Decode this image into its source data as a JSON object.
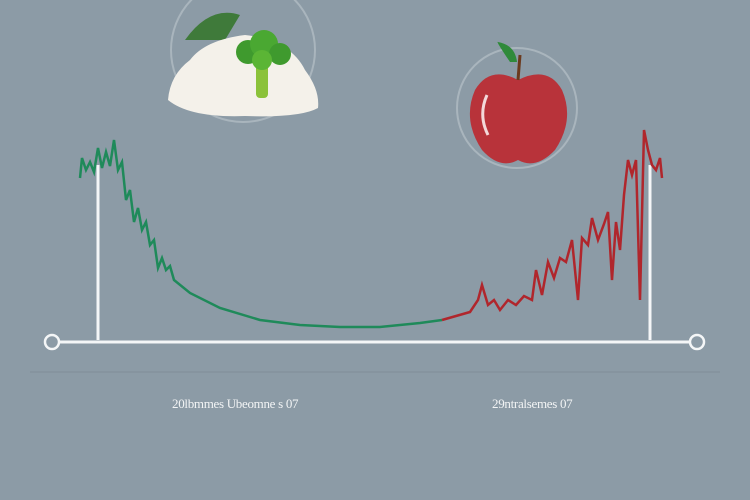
{
  "labels": {
    "left": "20lbmmes Ubeomne s 07",
    "right": "29ntralsemes 07"
  },
  "colors": {
    "background": "#8c9ba6",
    "green_line": "#1f8a5a",
    "red_line": "#b0262c",
    "axis": "#f4f6f7",
    "apple": "#b8333a",
    "broccoli": "#5ea82a"
  },
  "icons": [
    "broccoli-rice-icon",
    "apple-icon"
  ]
}
